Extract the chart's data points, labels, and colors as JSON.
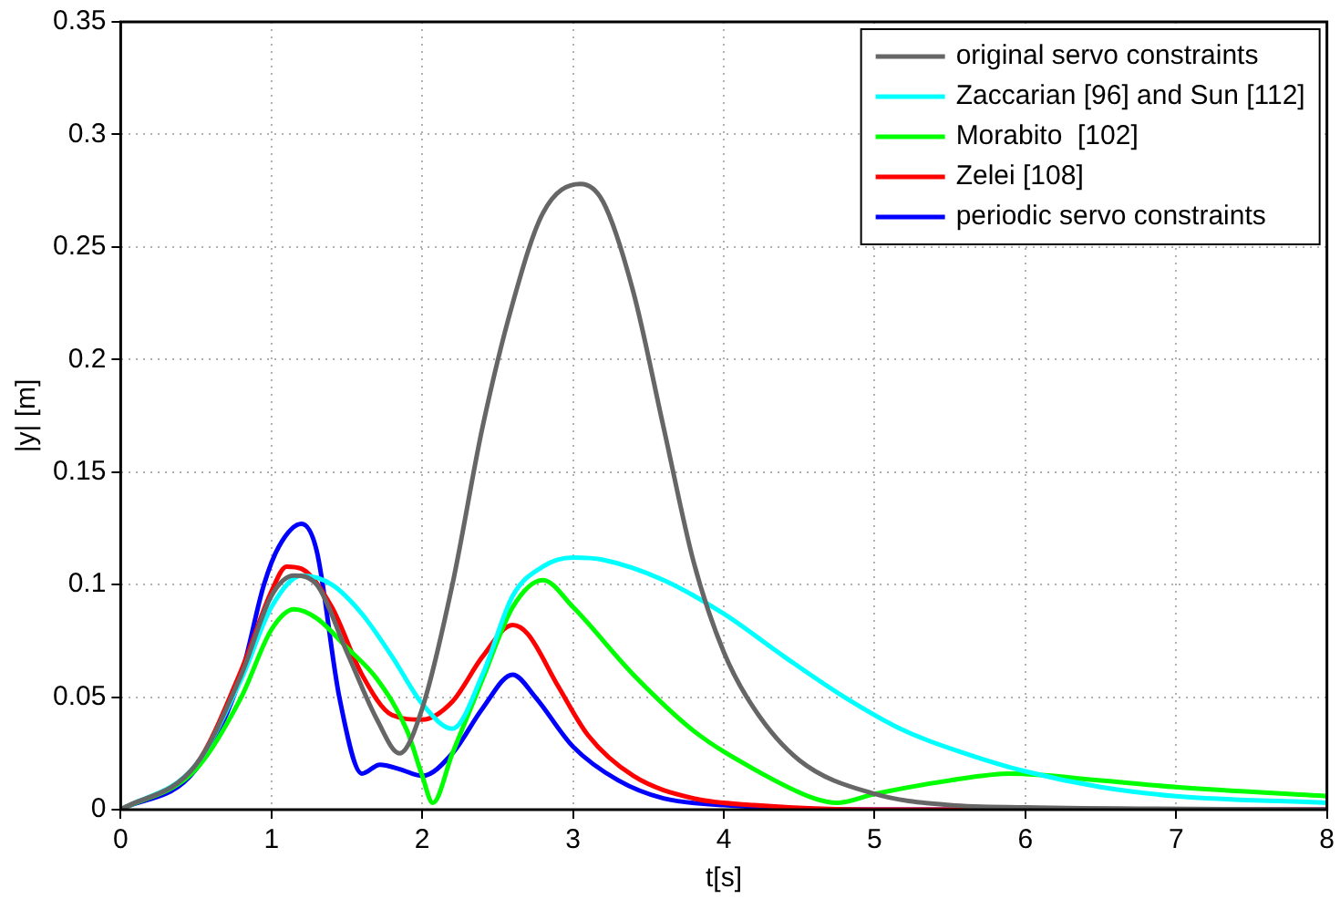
{
  "chart_data": {
    "type": "line",
    "xlabel": "t[s]",
    "ylabel": "|y| [m]",
    "xlim": [
      0,
      8
    ],
    "xticks": [
      0,
      1,
      2,
      3,
      4,
      5,
      6,
      7,
      8
    ],
    "ylim": [
      0,
      0.35
    ],
    "yticks": [
      0,
      0.05,
      0.1,
      0.15,
      0.2,
      0.25,
      0.3,
      0.35
    ],
    "grid": true,
    "legend": "top right",
    "marker": "none",
    "line_style": "solid",
    "series": [
      {
        "name": "original servo constraints",
        "color": "#666666",
        "x": [
          0,
          0.5,
          0.8,
          1.0,
          1.15,
          1.3,
          1.5,
          1.7,
          1.85,
          2.0,
          2.2,
          2.4,
          2.6,
          2.8,
          3.05,
          3.2,
          3.4,
          3.6,
          3.8,
          4.0,
          4.2,
          4.5,
          5.0,
          5.5,
          6,
          8
        ],
        "values": [
          0,
          0.02,
          0.06,
          0.095,
          0.104,
          0.1,
          0.07,
          0.04,
          0.025,
          0.045,
          0.1,
          0.17,
          0.225,
          0.265,
          0.278,
          0.27,
          0.23,
          0.17,
          0.11,
          0.07,
          0.045,
          0.022,
          0.007,
          0.002,
          0.001,
          0
        ]
      },
      {
        "name": "Zaccarian [96] and Sun [112]",
        "color": "#00ffff",
        "x": [
          0,
          0.5,
          0.8,
          1.0,
          1.2,
          1.4,
          1.6,
          1.8,
          2.0,
          2.2,
          2.4,
          2.6,
          2.8,
          3.0,
          3.2,
          3.6,
          4.0,
          4.4,
          4.8,
          5.2,
          5.6,
          6,
          6.5,
          7,
          8
        ],
        "values": [
          0,
          0.02,
          0.058,
          0.09,
          0.104,
          0.1,
          0.087,
          0.068,
          0.047,
          0.036,
          0.06,
          0.095,
          0.108,
          0.112,
          0.111,
          0.102,
          0.087,
          0.068,
          0.05,
          0.035,
          0.025,
          0.017,
          0.01,
          0.006,
          0.003
        ]
      },
      {
        "name": "Morabito  [102]",
        "color": "#00ff00",
        "x": [
          0,
          0.5,
          0.8,
          1.0,
          1.15,
          1.3,
          1.5,
          1.7,
          1.9,
          2.0,
          2.07,
          2.2,
          2.4,
          2.6,
          2.8,
          3.0,
          3.4,
          3.8,
          4.2,
          4.6,
          4.75,
          5.0,
          5.5,
          5.9,
          6.5,
          7,
          8
        ],
        "values": [
          0,
          0.018,
          0.05,
          0.08,
          0.089,
          0.085,
          0.072,
          0.058,
          0.035,
          0.015,
          0.003,
          0.025,
          0.058,
          0.09,
          0.102,
          0.09,
          0.06,
          0.035,
          0.018,
          0.005,
          0.003,
          0.007,
          0.013,
          0.016,
          0.013,
          0.01,
          0.006
        ]
      },
      {
        "name": "Zelei [108]",
        "color": "#ff0000",
        "x": [
          0,
          0.5,
          0.8,
          1.0,
          1.1,
          1.2,
          1.4,
          1.6,
          1.8,
          2.0,
          2.2,
          2.4,
          2.6,
          2.7,
          2.9,
          3.1,
          3.4,
          3.8,
          4.2,
          5,
          8
        ],
        "values": [
          0,
          0.02,
          0.062,
          0.097,
          0.108,
          0.107,
          0.09,
          0.06,
          0.042,
          0.04,
          0.048,
          0.068,
          0.082,
          0.078,
          0.055,
          0.033,
          0.015,
          0.005,
          0.002,
          0,
          0
        ]
      },
      {
        "name": "periodic servo constraints",
        "color": "#0000ff",
        "x": [
          0,
          0.5,
          0.8,
          0.95,
          1.05,
          1.2,
          1.3,
          1.45,
          1.6,
          1.72,
          1.85,
          2.0,
          2.2,
          2.4,
          2.6,
          2.75,
          3.0,
          3.3,
          3.6,
          4.0,
          5,
          8
        ],
        "values": [
          0,
          0.018,
          0.06,
          0.1,
          0.117,
          0.127,
          0.115,
          0.05,
          0.016,
          0.02,
          0.018,
          0.015,
          0.025,
          0.045,
          0.06,
          0.05,
          0.028,
          0.013,
          0.005,
          0.002,
          0,
          0
        ]
      }
    ]
  }
}
